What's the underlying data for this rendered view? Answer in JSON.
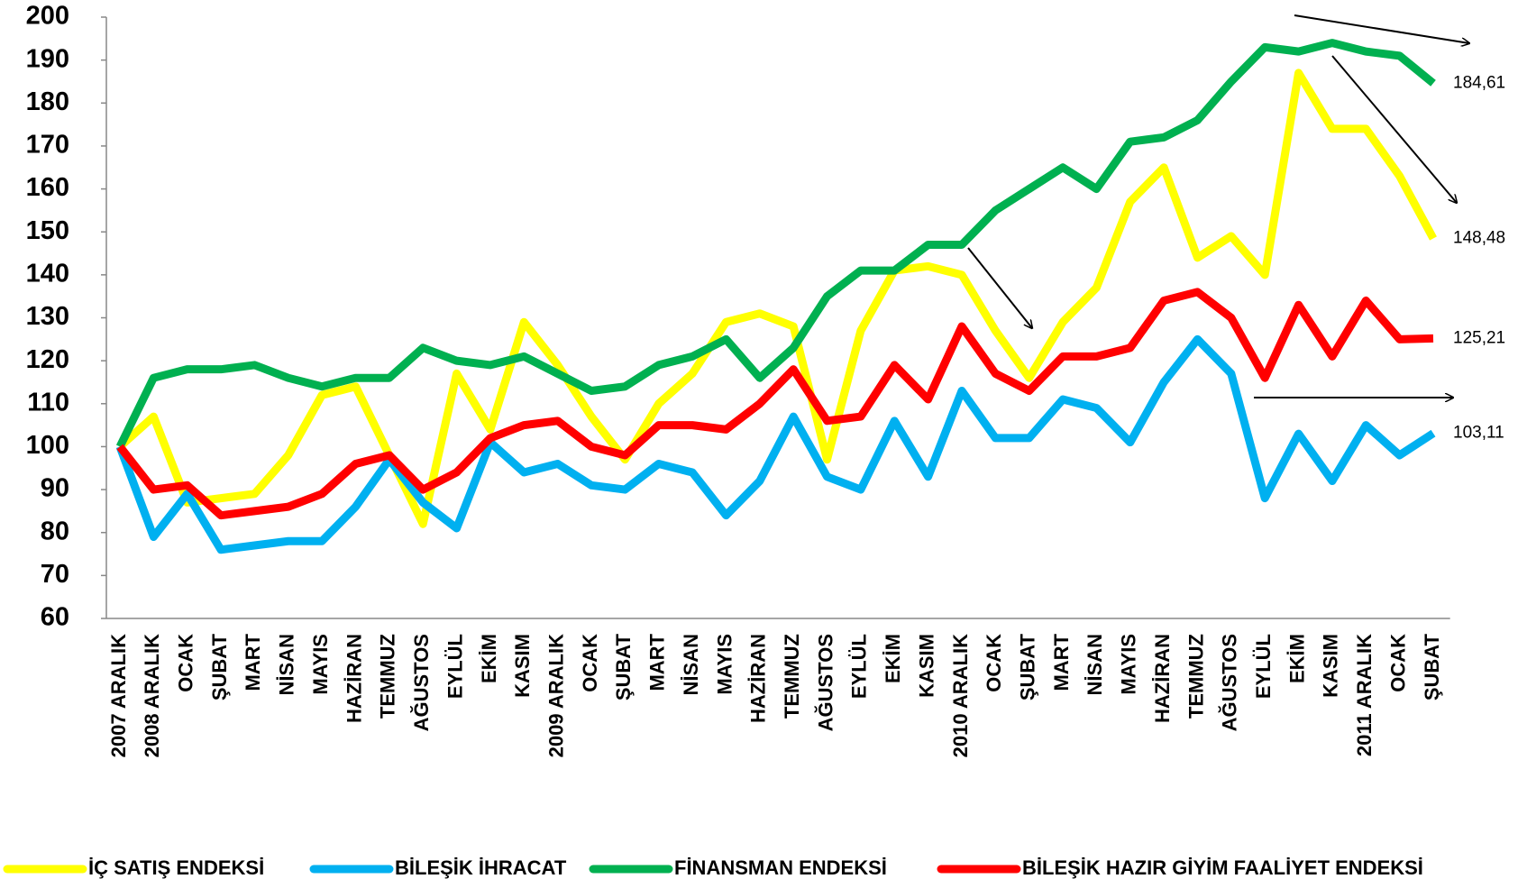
{
  "chart_data": {
    "type": "line",
    "categories": [
      "2007 ARALIK",
      "2008 ARALIK",
      "OCAK",
      "ŞUBAT",
      "MART",
      "NİSAN",
      "MAYIS",
      "HAZİRAN",
      "TEMMUZ",
      "AĞUSTOS",
      "EYLÜL",
      "EKİM",
      "KASIM",
      "2009 ARALIK",
      "OCAK",
      "ŞUBAT",
      "MART",
      "NİSAN",
      "MAYIS",
      "HAZİRAN",
      "TEMMUZ",
      "AĞUSTOS",
      "EYLÜL",
      "EKİM",
      "KASIM",
      "2010 ARALIK",
      "OCAK",
      "ŞUBAT",
      "MART",
      "NİSAN",
      "MAYIS",
      "HAZİRAN",
      "TEMMUZ",
      "AĞUSTOS",
      "EYLÜL",
      "EKİM",
      "KASIM",
      "2011 ARALIK",
      "OCAK",
      "ŞUBAT"
    ],
    "series": [
      {
        "name": "İÇ SATIŞ ENDEKSİ",
        "color": "#ffff00",
        "values": [
          100,
          107,
          87,
          88,
          89,
          98,
          112,
          114,
          98,
          82,
          117,
          104,
          129,
          119,
          107,
          97,
          110,
          117,
          129,
          131,
          128,
          97,
          127,
          141,
          142,
          140,
          127,
          116,
          129,
          137,
          157,
          165,
          144,
          149,
          140,
          187,
          174,
          174,
          163,
          148.48
        ],
        "value_labels": [
          null,
          null,
          null,
          null,
          null,
          null,
          null,
          null,
          null,
          null,
          null,
          null,
          null,
          null,
          null,
          null,
          null,
          null,
          null,
          null,
          null,
          null,
          null,
          null,
          null,
          null,
          null,
          null,
          null,
          null,
          null,
          null,
          null,
          null,
          null,
          null,
          null,
          null,
          null,
          "148,48"
        ]
      },
      {
        "name": "BİLEŞİK İHRACAT",
        "color": "#00b0f0",
        "values": [
          100,
          79,
          89,
          76,
          77,
          78,
          78,
          86,
          97,
          87,
          81,
          101,
          94,
          96,
          91,
          90,
          96,
          94,
          84,
          92,
          107,
          93,
          90,
          106,
          93,
          113,
          102,
          102,
          111,
          109,
          101,
          115,
          125,
          117,
          88,
          103,
          92,
          105,
          98,
          103.11
        ],
        "value_labels": [
          null,
          null,
          null,
          null,
          null,
          null,
          null,
          null,
          null,
          null,
          null,
          null,
          null,
          null,
          null,
          null,
          null,
          null,
          null,
          null,
          null,
          null,
          null,
          null,
          null,
          null,
          null,
          null,
          null,
          null,
          null,
          null,
          null,
          null,
          null,
          null,
          null,
          null,
          null,
          "103,11"
        ]
      },
      {
        "name": "FİNANSMAN ENDEKSİ",
        "color": "#00b050",
        "values": [
          100,
          116,
          118,
          118,
          119,
          116,
          114,
          116,
          116,
          123,
          120,
          119,
          121,
          117,
          113,
          114,
          119,
          121,
          125,
          116,
          123,
          135,
          141,
          141,
          147,
          147,
          155,
          160,
          165,
          160,
          171,
          172,
          176,
          185,
          193,
          192,
          194,
          192,
          191,
          184.61
        ],
        "value_labels": [
          null,
          null,
          null,
          null,
          null,
          null,
          null,
          null,
          null,
          null,
          null,
          null,
          null,
          null,
          null,
          null,
          null,
          null,
          null,
          null,
          null,
          null,
          null,
          null,
          null,
          null,
          null,
          null,
          null,
          null,
          null,
          null,
          null,
          null,
          null,
          null,
          null,
          null,
          null,
          "184,61"
        ]
      },
      {
        "name": "BİLEŞİK HAZIR GİYİM FAALİYET ENDEKSİ",
        "color": "#ff0000",
        "values": [
          100,
          90,
          91,
          84,
          85,
          86,
          89,
          96,
          98,
          90,
          94,
          102,
          105,
          106,
          100,
          98,
          105,
          105,
          104,
          110,
          118,
          106,
          107,
          119,
          111,
          128,
          117,
          113,
          121,
          121,
          123,
          134,
          136,
          130,
          116,
          133,
          121,
          134,
          125,
          125.21
        ],
        "value_labels": [
          null,
          null,
          null,
          null,
          null,
          null,
          null,
          null,
          null,
          null,
          null,
          null,
          null,
          null,
          null,
          null,
          null,
          null,
          null,
          null,
          null,
          null,
          null,
          null,
          null,
          null,
          null,
          null,
          null,
          null,
          null,
          null,
          null,
          null,
          null,
          null,
          null,
          null,
          null,
          "125,21"
        ]
      }
    ],
    "ylim": [
      60,
      200
    ],
    "yticks": [
      60,
      70,
      80,
      90,
      100,
      110,
      120,
      130,
      140,
      150,
      160,
      170,
      180,
      190,
      200
    ],
    "legend": "bottom"
  }
}
